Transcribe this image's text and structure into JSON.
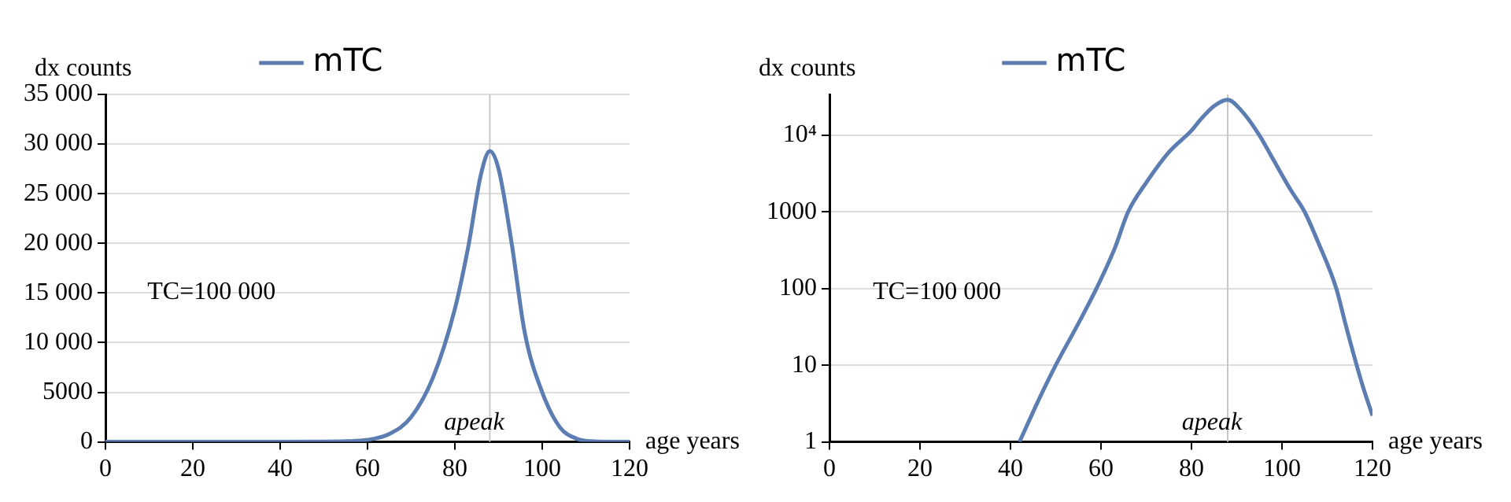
{
  "chart_data": [
    {
      "type": "line",
      "legend": "top",
      "grid": "y",
      "xlabel": "age years",
      "ylabel": "dx counts",
      "xlim": [
        0,
        120
      ],
      "xticks": [
        0,
        20,
        40,
        60,
        80,
        100,
        120
      ],
      "ylim": [
        0,
        35000
      ],
      "yticks": [
        {
          "value": 0,
          "label": "0"
        },
        {
          "value": 5000,
          "label": "5000"
        },
        {
          "value": 10000,
          "label": "10 000"
        },
        {
          "value": 15000,
          "label": "15 000"
        },
        {
          "value": 20000,
          "label": "20 000"
        },
        {
          "value": 25000,
          "label": "25 000"
        },
        {
          "value": 30000,
          "label": "30 000"
        },
        {
          "value": 35000,
          "label": "35 000"
        }
      ],
      "marker": "none",
      "line_style": "solid",
      "annotations": [
        "TC=100 000"
      ],
      "ref_lines": [
        {
          "axis": "x",
          "value": 88,
          "label": "apeak",
          "color": "#c8c8c8"
        }
      ],
      "series": [
        {
          "name": "mTC",
          "color": "#5b7db1",
          "x": [
            0,
            20,
            40,
            50,
            55,
            60,
            65,
            70,
            75,
            80,
            83,
            86,
            88,
            90,
            93,
            96,
            100,
            104,
            108,
            112,
            116,
            120
          ],
          "values": [
            0,
            0,
            0,
            20,
            60,
            200,
            800,
            2500,
            6500,
            13400,
            19500,
            27000,
            29300,
            27500,
            20000,
            11000,
            5000,
            1500,
            300,
            50,
            10,
            0
          ]
        }
      ]
    },
    {
      "type": "line",
      "legend": "top",
      "grid": "y",
      "log": "y",
      "xlabel": "age years",
      "ylabel": "dx counts",
      "xlim": [
        0,
        120
      ],
      "xticks": [
        0,
        20,
        40,
        60,
        80,
        100,
        120
      ],
      "ylim": [
        1,
        34000
      ],
      "yticks": [
        1,
        10,
        100,
        1000,
        {
          "value": 10000,
          "label": "10⁴"
        }
      ],
      "marker": "none",
      "line_style": "solid",
      "annotations": [
        "TC=100 000"
      ],
      "ref_lines": [
        {
          "axis": "x",
          "value": 88,
          "label": "apeak",
          "color": "#c8c8c8"
        }
      ],
      "series": [
        {
          "name": "mTC",
          "color": "#5b7db1",
          "x": [
            42,
            46,
            50,
            55,
            59,
            63,
            66,
            70,
            75,
            80,
            82,
            85,
            88,
            91,
            95,
            98,
            102,
            105,
            108,
            112,
            114,
            116.5,
            118,
            120
          ],
          "values": [
            1,
            3.3,
            10,
            35,
            100,
            330,
            1000,
            2400,
            6000,
            11500,
            16000,
            24000,
            29000,
            21000,
            10000,
            4900,
            1900,
            1000,
            400,
            100,
            35,
            10,
            5,
            2.2
          ]
        }
      ]
    }
  ]
}
